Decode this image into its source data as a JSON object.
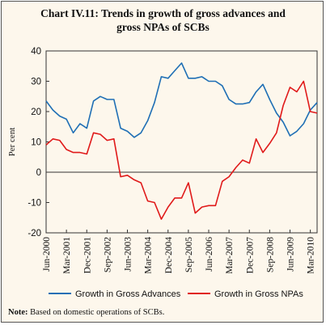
{
  "chart_data": {
    "type": "line",
    "title_line1": "Chart IV.11: Trends in growth of gross advances and",
    "title_line2": "gross NPAs of SCBs",
    "ylabel": "Per cent",
    "xlabel": "",
    "ylim": [
      -20,
      40
    ],
    "yticks": [
      -20,
      -10,
      0,
      10,
      20,
      30,
      40
    ],
    "x_tick_labels": [
      "Jun-2000",
      "Mar-2001",
      "Dec-2001",
      "Sep-2002",
      "Jun-2003",
      "Mar-2004",
      "Dec-2004",
      "Sep-2005",
      "Jun-2006",
      "Mar-2007",
      "Dec-2007",
      "Sep-2008",
      "Jun-2009",
      "Mar-2010"
    ],
    "x": [
      "Jun-2000",
      "Sep-2000",
      "Dec-2000",
      "Mar-2001",
      "Jun-2001",
      "Sep-2001",
      "Dec-2001",
      "Mar-2002",
      "Jun-2002",
      "Sep-2002",
      "Dec-2002",
      "Mar-2003",
      "Jun-2003",
      "Sep-2003",
      "Dec-2003",
      "Mar-2004",
      "Jun-2004",
      "Sep-2004",
      "Dec-2004",
      "Mar-2005",
      "Jun-2005",
      "Sep-2005",
      "Dec-2005",
      "Mar-2006",
      "Jun-2006",
      "Sep-2006",
      "Dec-2006",
      "Mar-2007",
      "Jun-2007",
      "Sep-2007",
      "Dec-2007",
      "Mar-2008",
      "Jun-2008",
      "Sep-2008",
      "Dec-2008",
      "Mar-2009",
      "Jun-2009",
      "Sep-2009",
      "Dec-2009",
      "Mar-2010",
      "Jun-2010"
    ],
    "grid": false,
    "legend_position": "bottom",
    "series": [
      {
        "name": "Growth in Gross Advances",
        "color": "#1f6fb5",
        "values": [
          23.5,
          20.5,
          18.5,
          17.5,
          13,
          16,
          14.5,
          23.5,
          25,
          24,
          24,
          14.5,
          13.5,
          11.5,
          13,
          17,
          23,
          31.5,
          31,
          33.5,
          36,
          31,
          31,
          31.5,
          30,
          30,
          28.5,
          24,
          22.5,
          22.5,
          23,
          26.5,
          29,
          24,
          19.5,
          16.5,
          12,
          13.5,
          16,
          20.5,
          23
        ]
      },
      {
        "name": "Growth in Gross NPAs",
        "color": "#e01a1a",
        "values": [
          9,
          11,
          10.5,
          7.5,
          6.5,
          6.5,
          6,
          13,
          12.5,
          10.5,
          11,
          -1.5,
          -1,
          -2.5,
          -3.5,
          -9.5,
          -10,
          -15.5,
          -11.5,
          -8.5,
          -8.5,
          -3.5,
          -13.5,
          -11.5,
          -11,
          -11,
          -3,
          -1.5,
          1.5,
          4,
          3,
          11,
          6.5,
          9.5,
          13,
          22,
          28,
          26.5,
          30,
          20,
          19.5
        ]
      }
    ]
  },
  "note": {
    "label": "Note:",
    "text": " Based on domestic operations of SCBs."
  }
}
